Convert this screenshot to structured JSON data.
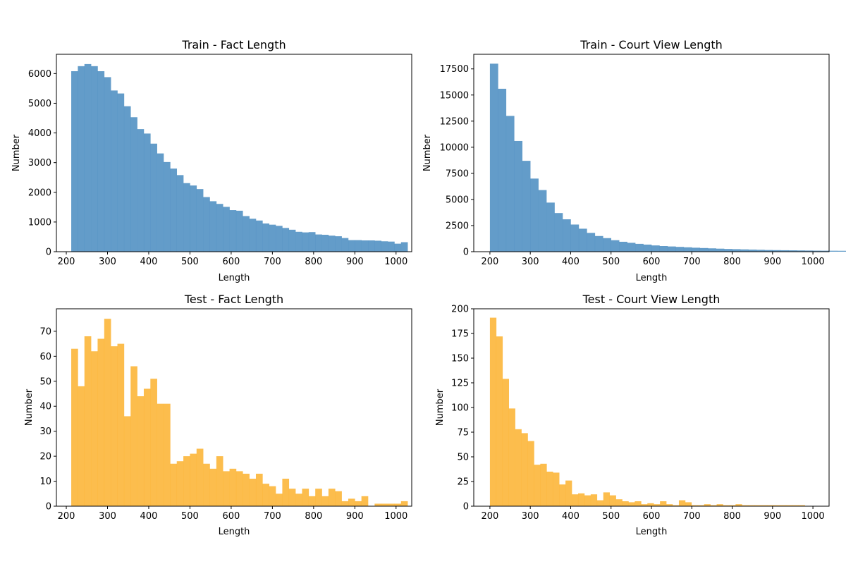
{
  "chart_data": [
    {
      "type": "bar",
      "title": "Train - Fact Length",
      "xlabel": "Length",
      "ylabel": "Number",
      "color": "#4d8ec2",
      "opacity": 0.88,
      "xlim": [
        176,
        1038
      ],
      "ylim": [
        0,
        6650
      ],
      "xticks": [
        200,
        300,
        400,
        500,
        600,
        700,
        800,
        900,
        1000
      ],
      "yticks": [
        0,
        1000,
        2000,
        3000,
        4000,
        5000,
        6000
      ],
      "bin_start": 212,
      "bin_width": 16,
      "values": [
        6080,
        6250,
        6320,
        6250,
        6080,
        5880,
        5430,
        5330,
        4900,
        4530,
        4130,
        3980,
        3640,
        3310,
        3020,
        2800,
        2580,
        2310,
        2230,
        2110,
        1840,
        1700,
        1610,
        1510,
        1400,
        1380,
        1200,
        1110,
        1050,
        950,
        910,
        870,
        800,
        740,
        670,
        650,
        660,
        580,
        570,
        540,
        520,
        460,
        390,
        390,
        380,
        380,
        370,
        350,
        340,
        270,
        320
      ]
    },
    {
      "type": "bar",
      "title": "Train - Court View Length",
      "xlabel": "Length",
      "ylabel": "Number",
      "color": "#4d8ec2",
      "opacity": 0.88,
      "xlim": [
        160,
        1040
      ],
      "ylim": [
        0,
        18900
      ],
      "xticks": [
        200,
        300,
        400,
        500,
        600,
        700,
        800,
        900,
        1000
      ],
      "yticks": [
        0,
        2500,
        5000,
        7500,
        10000,
        12500,
        15000,
        17500
      ],
      "bin_start": 200,
      "bin_width": 20,
      "values": [
        18000,
        15600,
        13000,
        10600,
        8700,
        7000,
        5900,
        4700,
        3700,
        3100,
        2600,
        2200,
        1800,
        1500,
        1300,
        1100,
        950,
        850,
        750,
        680,
        600,
        540,
        500,
        460,
        420,
        380,
        350,
        320,
        290,
        260,
        240,
        220,
        200,
        180,
        160,
        150,
        140,
        130,
        120,
        110,
        100,
        95,
        90,
        85,
        80,
        75,
        70,
        65,
        60,
        55
      ]
    },
    {
      "type": "bar",
      "title": "Test - Fact Length",
      "xlabel": "Length",
      "ylabel": "Number",
      "color": "#fbb22e",
      "opacity": 0.85,
      "xlim": [
        176,
        1038
      ],
      "ylim": [
        0,
        79
      ],
      "xticks": [
        200,
        300,
        400,
        500,
        600,
        700,
        800,
        900,
        1000
      ],
      "yticks": [
        0,
        10,
        20,
        30,
        40,
        50,
        60,
        70
      ],
      "bin_start": 212,
      "bin_width": 16,
      "values": [
        63,
        48,
        68,
        62,
        67,
        75,
        64,
        65,
        36,
        56,
        44,
        47,
        51,
        41,
        41,
        17,
        18,
        20,
        21,
        23,
        17,
        15,
        20,
        14,
        15,
        14,
        13,
        11,
        13,
        9,
        8,
        5,
        11,
        7,
        5,
        7,
        4,
        7,
        4,
        7,
        6,
        2,
        3,
        2,
        4,
        0,
        1,
        1,
        1,
        1,
        2
      ]
    },
    {
      "type": "bar",
      "title": "Test - Court View Length",
      "xlabel": "Length",
      "ylabel": "Number",
      "color": "#fbb22e",
      "opacity": 0.85,
      "xlim": [
        160,
        1040
      ],
      "ylim": [
        0,
        200
      ],
      "xticks": [
        200,
        300,
        400,
        500,
        600,
        700,
        800,
        900,
        1000
      ],
      "yticks": [
        0,
        25,
        50,
        75,
        100,
        125,
        150,
        175,
        200
      ],
      "bin_start": 200,
      "bin_width": 15.6,
      "values": [
        191,
        172,
        129,
        99,
        78,
        74,
        66,
        42,
        43,
        35,
        34,
        22,
        26,
        12,
        13,
        11,
        12,
        6,
        14,
        11,
        7,
        5,
        4,
        5,
        2,
        3,
        2,
        5,
        2,
        1,
        6,
        4,
        1,
        1,
        2,
        1,
        2,
        1,
        1,
        2,
        1,
        1,
        1,
        1,
        1,
        1,
        1,
        1,
        1,
        1
      ]
    }
  ]
}
